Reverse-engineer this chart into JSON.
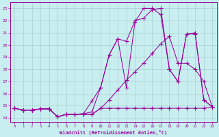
{
  "bg_color": "#c8eef0",
  "grid_color": "#9fc8ca",
  "line_color": "#990099",
  "marker": "+",
  "markersize": 4.0,
  "markeredgewidth": 0.8,
  "lw": 0.75,
  "xlim": [
    -0.5,
    23.5
  ],
  "ylim": [
    13.7,
    23.5
  ],
  "xticks": [
    0,
    1,
    2,
    3,
    4,
    5,
    6,
    7,
    8,
    9,
    10,
    11,
    12,
    13,
    14,
    15,
    16,
    17,
    18,
    19,
    20,
    21,
    22,
    23
  ],
  "yticks": [
    14,
    15,
    16,
    17,
    18,
    19,
    20,
    21,
    22,
    23
  ],
  "xlabel": "Windchill (Refroidissement éolien,°C)",
  "lines": [
    {
      "x": [
        0,
        1,
        2,
        3,
        4,
        5,
        6,
        7,
        8,
        9,
        10,
        11,
        12,
        13,
        14,
        15,
        16,
        17,
        18,
        19,
        20,
        21,
        22,
        23
      ],
      "y": [
        14.8,
        14.65,
        14.65,
        14.75,
        14.75,
        14.1,
        14.3,
        14.3,
        14.3,
        14.3,
        14.8,
        14.8,
        14.8,
        14.8,
        14.8,
        14.8,
        14.8,
        14.8,
        14.8,
        14.8,
        14.8,
        14.8,
        14.8,
        14.9
      ]
    },
    {
      "x": [
        0,
        1,
        2,
        3,
        4,
        5,
        6,
        7,
        8,
        9,
        10,
        11,
        12,
        13,
        14,
        15,
        16,
        17,
        18,
        19,
        20,
        21,
        22,
        23
      ],
      "y": [
        14.8,
        14.65,
        14.65,
        14.75,
        14.75,
        14.1,
        14.3,
        14.3,
        14.35,
        14.5,
        16.5,
        19.2,
        20.5,
        20.3,
        22.0,
        22.2,
        22.9,
        23.0,
        18.0,
        17.0,
        20.9,
        21.0,
        15.5,
        14.9
      ]
    },
    {
      "x": [
        0,
        1,
        2,
        3,
        4,
        5,
        6,
        7,
        8,
        9,
        10,
        11,
        12,
        13,
        14,
        15,
        16,
        17,
        18,
        19,
        20,
        21,
        22,
        23
      ],
      "y": [
        14.8,
        14.65,
        14.65,
        14.75,
        14.75,
        14.1,
        14.3,
        14.3,
        14.3,
        14.3,
        14.8,
        15.5,
        16.3,
        17.1,
        17.8,
        18.5,
        19.3,
        20.1,
        20.7,
        18.5,
        18.5,
        18.0,
        17.0,
        14.9
      ]
    },
    {
      "x": [
        0,
        1,
        2,
        3,
        4,
        5,
        6,
        7,
        8,
        9,
        10,
        11,
        12,
        13,
        14,
        15,
        16,
        17,
        18,
        19,
        20,
        21,
        22,
        23
      ],
      "y": [
        14.8,
        14.65,
        14.65,
        14.75,
        14.75,
        14.1,
        14.3,
        14.3,
        14.35,
        15.4,
        16.5,
        19.2,
        20.5,
        16.5,
        21.9,
        23.0,
        23.0,
        22.5,
        18.0,
        17.0,
        20.9,
        20.9,
        15.5,
        14.9
      ]
    }
  ]
}
